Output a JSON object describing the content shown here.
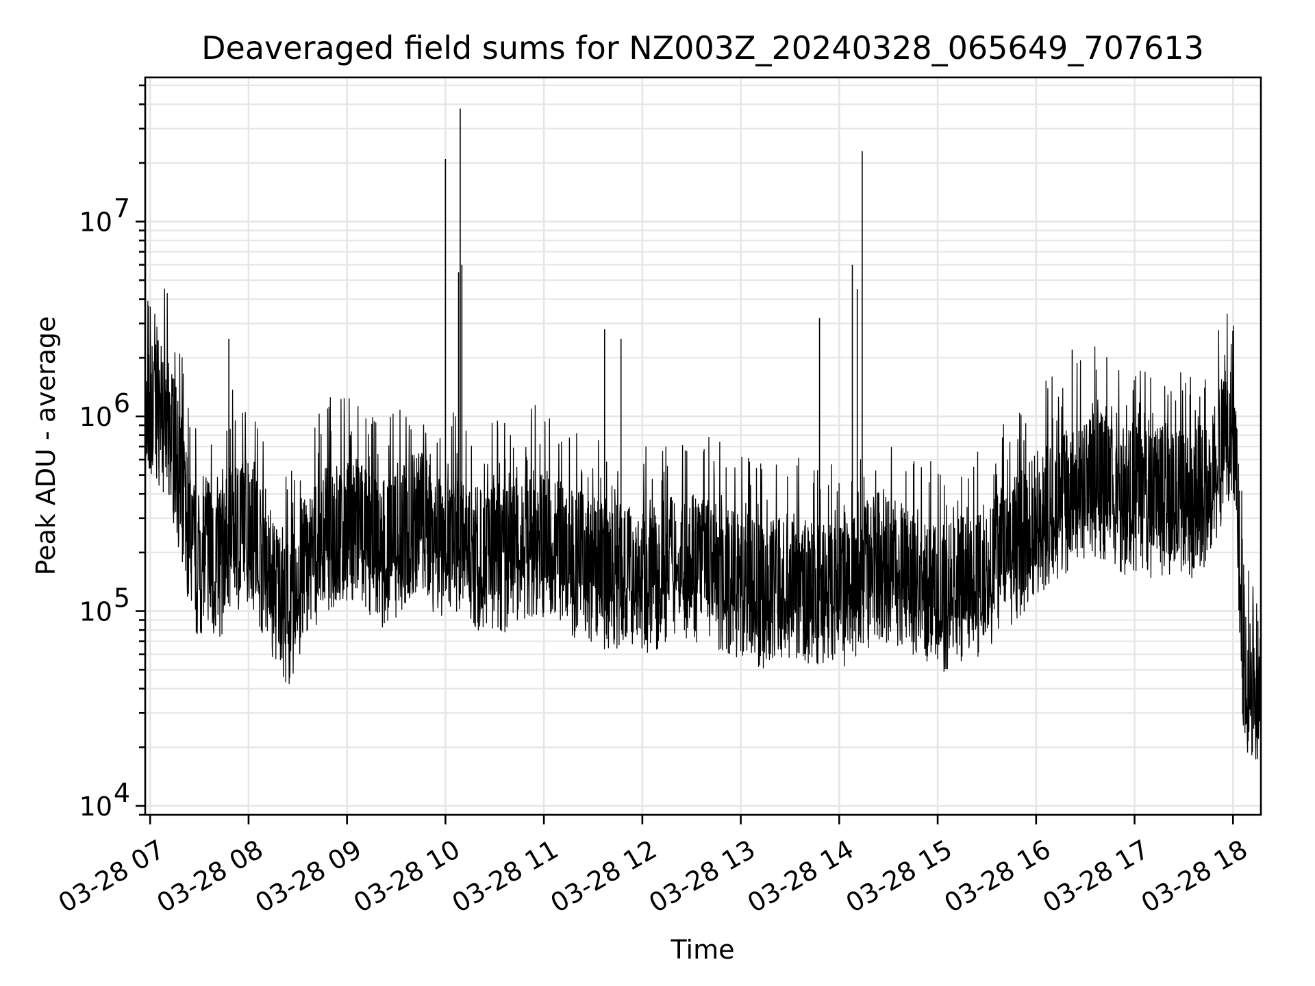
{
  "chart_data": {
    "type": "line",
    "title": "Deaveraged field sums for NZ003Z_20240328_065649_707613",
    "xlabel": "Time",
    "ylabel": "Peak ADU - average",
    "yscale": "log",
    "grid": "on (major and minor)",
    "legend": "none",
    "series_color": "#000000",
    "xlim": [
      "2024-03-28 06:57",
      "2024-03-28 18:17"
    ],
    "ylim": [
      9000,
      55000000
    ],
    "x_ticks": [
      {
        "value": "2024-03-28 07:00",
        "label": "03-28 07"
      },
      {
        "value": "2024-03-28 08:00",
        "label": "03-28 08"
      },
      {
        "value": "2024-03-28 09:00",
        "label": "03-28 09"
      },
      {
        "value": "2024-03-28 10:00",
        "label": "03-28 10"
      },
      {
        "value": "2024-03-28 11:00",
        "label": "03-28 11"
      },
      {
        "value": "2024-03-28 12:00",
        "label": "03-28 12"
      },
      {
        "value": "2024-03-28 13:00",
        "label": "03-28 13"
      },
      {
        "value": "2024-03-28 14:00",
        "label": "03-28 14"
      },
      {
        "value": "2024-03-28 15:00",
        "label": "03-28 15"
      },
      {
        "value": "2024-03-28 16:00",
        "label": "03-28 16"
      },
      {
        "value": "2024-03-28 17:00",
        "label": "03-28 17"
      },
      {
        "value": "2024-03-28 18:00",
        "label": "03-28 18"
      }
    ],
    "y_ticks": [
      {
        "value": 10000,
        "base": "10",
        "exp": "4"
      },
      {
        "value": 100000,
        "base": "10",
        "exp": "5"
      },
      {
        "value": 1000000,
        "base": "10",
        "exp": "6"
      },
      {
        "value": 10000000,
        "base": "10",
        "exp": "7"
      }
    ],
    "series": [
      {
        "x": [
          "2024-03-28 06:57",
          "2024-03-28 07:00",
          "2024-03-28 07:05",
          "2024-03-28 07:10",
          "2024-03-28 07:15",
          "2024-03-28 07:20",
          "2024-03-28 07:25",
          "2024-03-28 07:30",
          "2024-03-28 07:35",
          "2024-03-28 07:40",
          "2024-03-28 07:45",
          "2024-03-28 07:50",
          "2024-03-28 07:55",
          "2024-03-28 08:00",
          "2024-03-28 08:05",
          "2024-03-28 08:10",
          "2024-03-28 08:15",
          "2024-03-28 08:20",
          "2024-03-28 08:25",
          "2024-03-28 08:30",
          "2024-03-28 08:35",
          "2024-03-28 08:40",
          "2024-03-28 08:45",
          "2024-03-28 08:50",
          "2024-03-28 08:55",
          "2024-03-28 09:00",
          "2024-03-28 09:05",
          "2024-03-28 09:10",
          "2024-03-28 09:15",
          "2024-03-28 09:20",
          "2024-03-28 09:25",
          "2024-03-28 09:30",
          "2024-03-28 09:35",
          "2024-03-28 09:40",
          "2024-03-28 09:45",
          "2024-03-28 09:50",
          "2024-03-28 09:55",
          "2024-03-28 10:00",
          "2024-03-28 10:05",
          "2024-03-28 10:10",
          "2024-03-28 10:15",
          "2024-03-28 10:20",
          "2024-03-28 10:25",
          "2024-03-28 10:30",
          "2024-03-28 10:35",
          "2024-03-28 10:40",
          "2024-03-28 10:45",
          "2024-03-28 10:50",
          "2024-03-28 10:55",
          "2024-03-28 11:00",
          "2024-03-28 11:05",
          "2024-03-28 11:10",
          "2024-03-28 11:15",
          "2024-03-28 11:20",
          "2024-03-28 11:25",
          "2024-03-28 11:30",
          "2024-03-28 11:35",
          "2024-03-28 11:40",
          "2024-03-28 11:45",
          "2024-03-28 11:50",
          "2024-03-28 11:55",
          "2024-03-28 12:00",
          "2024-03-28 12:05",
          "2024-03-28 12:10",
          "2024-03-28 12:15",
          "2024-03-28 12:20",
          "2024-03-28 12:25",
          "2024-03-28 12:30",
          "2024-03-28 12:35",
          "2024-03-28 12:40",
          "2024-03-28 12:45",
          "2024-03-28 12:50",
          "2024-03-28 12:55",
          "2024-03-28 13:00",
          "2024-03-28 13:05",
          "2024-03-28 13:10",
          "2024-03-28 13:15",
          "2024-03-28 13:20",
          "2024-03-28 13:25",
          "2024-03-28 13:30",
          "2024-03-28 13:35",
          "2024-03-28 13:40",
          "2024-03-28 13:45",
          "2024-03-28 13:50",
          "2024-03-28 13:55",
          "2024-03-28 14:00",
          "2024-03-28 14:05",
          "2024-03-28 14:10",
          "2024-03-28 14:15",
          "2024-03-28 14:20",
          "2024-03-28 14:25",
          "2024-03-28 14:30",
          "2024-03-28 14:35",
          "2024-03-28 14:40",
          "2024-03-28 14:45",
          "2024-03-28 14:50",
          "2024-03-28 14:55",
          "2024-03-28 15:00",
          "2024-03-28 15:05",
          "2024-03-28 15:10",
          "2024-03-28 15:15",
          "2024-03-28 15:20",
          "2024-03-28 15:25",
          "2024-03-28 15:30",
          "2024-03-28 15:35",
          "2024-03-28 15:40",
          "2024-03-28 15:45",
          "2024-03-28 15:50",
          "2024-03-28 15:55",
          "2024-03-28 16:00",
          "2024-03-28 16:05",
          "2024-03-28 16:10",
          "2024-03-28 16:15",
          "2024-03-28 16:20",
          "2024-03-28 16:25",
          "2024-03-28 16:30",
          "2024-03-28 16:35",
          "2024-03-28 16:40",
          "2024-03-28 16:45",
          "2024-03-28 16:50",
          "2024-03-28 16:55",
          "2024-03-28 17:00",
          "2024-03-28 17:05",
          "2024-03-28 17:10",
          "2024-03-28 17:15",
          "2024-03-28 17:20",
          "2024-03-28 17:25",
          "2024-03-28 17:30",
          "2024-03-28 17:35",
          "2024-03-28 17:40",
          "2024-03-28 17:45",
          "2024-03-28 17:50",
          "2024-03-28 17:55",
          "2024-03-28 18:00",
          "2024-03-28 18:03",
          "2024-03-28 18:06",
          "2024-03-28 18:09",
          "2024-03-28 18:12",
          "2024-03-28 18:15",
          "2024-03-28 18:17"
        ],
        "y": [
          700000,
          900000,
          1000000,
          800000,
          600000,
          350000,
          200000,
          150000,
          200000,
          150000,
          170000,
          250000,
          220000,
          250000,
          200000,
          150000,
          120000,
          100000,
          90000,
          120000,
          150000,
          170000,
          200000,
          230000,
          220000,
          250000,
          240000,
          220000,
          200000,
          180000,
          190000,
          200000,
          220000,
          250000,
          260000,
          230000,
          210000,
          200000,
          190000,
          180000,
          175000,
          170000,
          175000,
          180000,
          170000,
          180000,
          190000,
          200000,
          210000,
          200000,
          210000,
          190000,
          170000,
          160000,
          150000,
          145000,
          140000,
          135000,
          140000,
          135000,
          130000,
          130000,
          135000,
          140000,
          145000,
          150000,
          160000,
          155000,
          150000,
          145000,
          140000,
          130000,
          125000,
          120000,
          115000,
          115000,
          110000,
          115000,
          120000,
          125000,
          120000,
          115000,
          110000,
          115000,
          110000,
          105000,
          110000,
          120000,
          130000,
          150000,
          160000,
          150000,
          140000,
          130000,
          125000,
          115000,
          110000,
          105000,
          110000,
          115000,
          120000,
          125000,
          130000,
          140000,
          160000,
          180000,
          190000,
          200000,
          220000,
          250000,
          280000,
          300000,
          320000,
          350000,
          380000,
          400000,
          420000,
          400000,
          380000,
          350000,
          330000,
          320000,
          320000,
          330000,
          340000,
          340000,
          330000,
          320000,
          330000,
          350000,
          400000,
          500000,
          700000,
          900000,
          300000,
          60000,
          40000,
          35000,
          30000,
          30000
        ],
        "spikes": [
          {
            "x": "2024-03-28 07:48",
            "y": 2500000
          },
          {
            "x": "2024-03-28 10:00",
            "y": 21000000
          },
          {
            "x": "2024-03-28 10:08",
            "y": 5500000
          },
          {
            "x": "2024-03-28 10:09",
            "y": 38000000
          },
          {
            "x": "2024-03-28 10:10",
            "y": 6000000
          },
          {
            "x": "2024-03-28 11:37",
            "y": 2800000
          },
          {
            "x": "2024-03-28 11:47",
            "y": 2500000
          },
          {
            "x": "2024-03-28 13:48",
            "y": 3200000
          },
          {
            "x": "2024-03-28 14:08",
            "y": 6000000
          },
          {
            "x": "2024-03-28 14:11",
            "y": 4500000
          },
          {
            "x": "2024-03-28 14:14",
            "y": 23000000
          },
          {
            "x": "2024-03-28 16:22",
            "y": 2200000
          }
        ]
      }
    ]
  }
}
